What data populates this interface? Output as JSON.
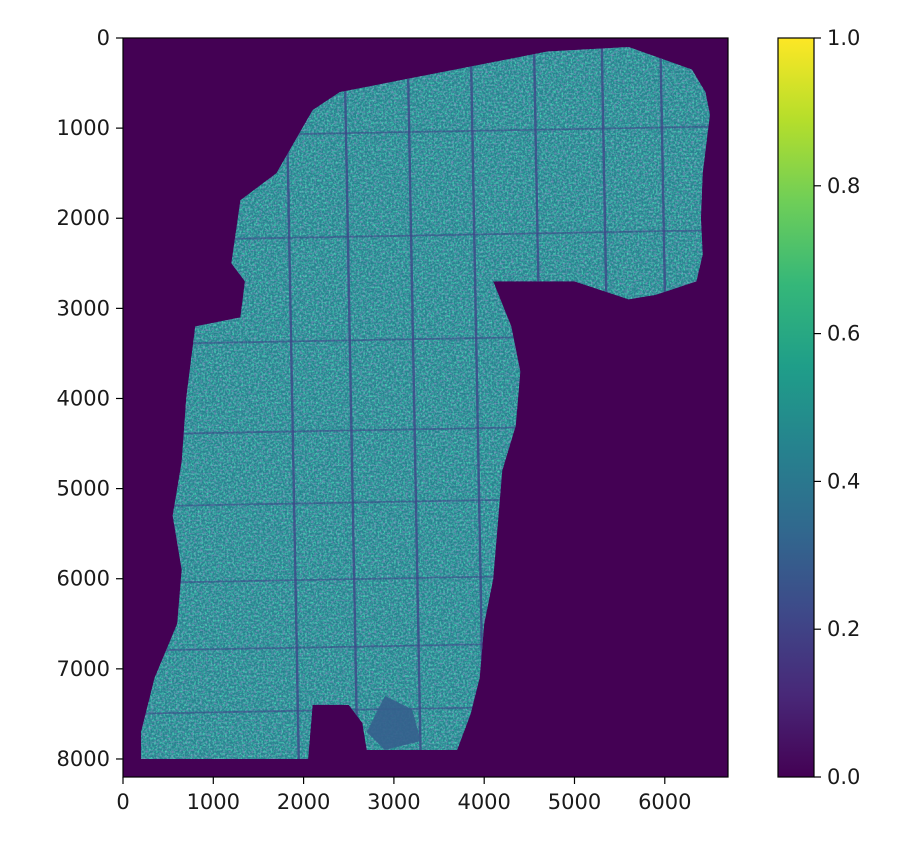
{
  "chart_data": {
    "type": "heatmap",
    "title": "",
    "xlabel": "",
    "ylabel": "",
    "xlim": [
      0,
      6700
    ],
    "ylim": [
      8200,
      0
    ],
    "x_ticks": [
      0,
      1000,
      2000,
      3000,
      4000,
      5000,
      6000
    ],
    "y_ticks": [
      0,
      1000,
      2000,
      3000,
      4000,
      5000,
      6000,
      7000,
      8000
    ],
    "y_axis_inverted": true,
    "colormap": "viridis",
    "colorbar": {
      "range": [
        0.0,
        1.0
      ],
      "ticks": [
        "0.0",
        "0.2",
        "0.4",
        "0.6",
        "0.8",
        "1.0"
      ]
    },
    "background_value": 0.0,
    "typical_value_range": [
      0.2,
      0.75
    ],
    "mean_value_in_region": 0.45,
    "region_outline": [
      [
        2400,
        600
      ],
      [
        4700,
        150
      ],
      [
        5600,
        100
      ],
      [
        6300,
        350
      ],
      [
        6450,
        600
      ],
      [
        6500,
        850
      ],
      [
        6420,
        1500
      ],
      [
        6400,
        2000
      ],
      [
        6420,
        2400
      ],
      [
        6350,
        2700
      ],
      [
        5900,
        2850
      ],
      [
        5600,
        2900
      ],
      [
        5000,
        2700
      ],
      [
        4100,
        2700
      ],
      [
        4300,
        3200
      ],
      [
        4400,
        3700
      ],
      [
        4350,
        4300
      ],
      [
        4200,
        4800
      ],
      [
        4150,
        5400
      ],
      [
        4100,
        6000
      ],
      [
        4000,
        6500
      ],
      [
        3950,
        7100
      ],
      [
        3850,
        7500
      ],
      [
        3700,
        7900
      ],
      [
        2700,
        7900
      ],
      [
        2650,
        7600
      ],
      [
        2500,
        7400
      ],
      [
        2100,
        7400
      ],
      [
        2050,
        8000
      ],
      [
        200,
        8000
      ],
      [
        200,
        7700
      ],
      [
        350,
        7100
      ],
      [
        600,
        6500
      ],
      [
        650,
        5900
      ],
      [
        550,
        5300
      ],
      [
        650,
        4700
      ],
      [
        700,
        4000
      ],
      [
        800,
        3200
      ],
      [
        1300,
        3100
      ],
      [
        1350,
        2700
      ],
      [
        1200,
        2500
      ],
      [
        1300,
        1800
      ],
      [
        1700,
        1500
      ],
      [
        2100,
        800
      ]
    ],
    "cutout_region": [
      [
        2900,
        7300
      ],
      [
        3200,
        7450
      ],
      [
        3300,
        7800
      ],
      [
        2900,
        7900
      ],
      [
        2700,
        7700
      ]
    ],
    "vertical_dark_streaks_x": [
      1800,
      2450,
      3150,
      3850,
      4550,
      5300,
      5950
    ],
    "horizontal_dark_streaks_y": [
      1100,
      2250,
      3400,
      4400,
      5200,
      6050,
      6800,
      7500
    ],
    "colors": {
      "viridis_stops": [
        "#440154",
        "#482878",
        "#3e4989",
        "#31688e",
        "#26828e",
        "#1f9e89",
        "#35b779",
        "#6ece58",
        "#b5de2b",
        "#fde725"
      ]
    }
  }
}
